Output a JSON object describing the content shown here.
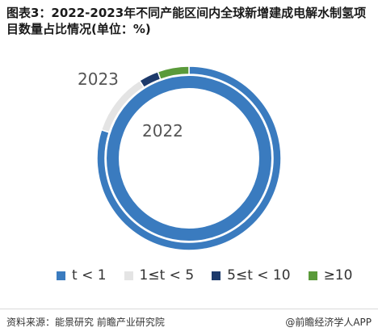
{
  "title": "图表3：2022-2023年不同产能区间内全球新增建成电解水制氢项目数量占比情况(单位：%)",
  "footer": {
    "source": "资料来源：能景研究 前瞻产业研究院",
    "brand": "@前瞻经济学人APP"
  },
  "colors": {
    "t_lt_1": "#3a7bbf",
    "t_1_5": "#e4e4e4",
    "t_5_10": "#1d3a6b",
    "t_ge_10": "#5a9a3a"
  },
  "chart_data": {
    "type": "pie",
    "subtype": "double-donut",
    "categories": [
      "t < 1",
      "1≤t < 5",
      "5≤t < 10",
      "≥10"
    ],
    "series": [
      {
        "name": "2022",
        "values": [
          100,
          0,
          0,
          0
        ]
      },
      {
        "name": "2023",
        "values": [
          80,
          11,
          3.5,
          5.5
        ]
      }
    ],
    "legend_position": "bottom",
    "unit": "%"
  }
}
